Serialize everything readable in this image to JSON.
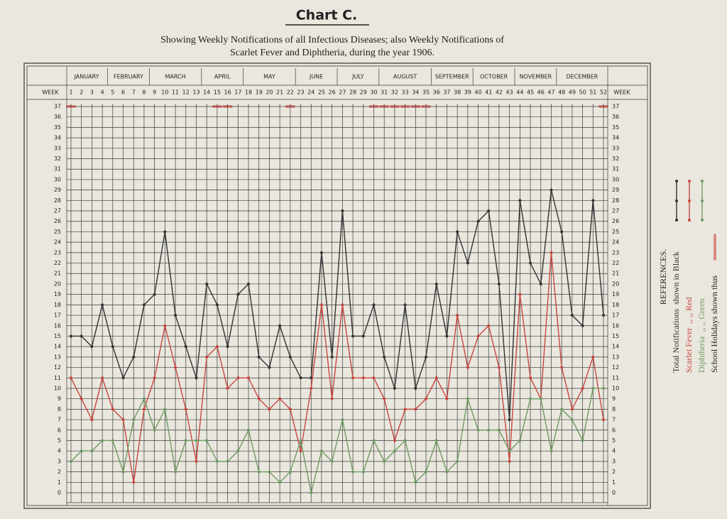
{
  "chart_data": {
    "type": "line",
    "title": "Chart C.",
    "subtitle_lines": [
      "Showing Weekly Notifications of all Infectious Diseases; also Weekly Notifications of",
      "Scarlet Fever and Diphtheria, during the year 1906."
    ],
    "x_label": "WEEK",
    "x": [
      1,
      2,
      3,
      4,
      5,
      6,
      7,
      8,
      9,
      10,
      11,
      12,
      13,
      14,
      15,
      16,
      17,
      18,
      19,
      20,
      21,
      22,
      23,
      24,
      25,
      26,
      27,
      28,
      29,
      30,
      31,
      32,
      33,
      34,
      35,
      36,
      37,
      38,
      39,
      40,
      41,
      42,
      43,
      44,
      45,
      46,
      47,
      48,
      49,
      50,
      51,
      52
    ],
    "xlim": [
      1,
      52
    ],
    "months": [
      {
        "label": "JANUARY",
        "start_week": 1
      },
      {
        "label": "FEBRUARY",
        "start_week": 5
      },
      {
        "label": "MARCH",
        "start_week": 9
      },
      {
        "label": "APRIL",
        "start_week": 14
      },
      {
        "label": "MAY",
        "start_week": 18
      },
      {
        "label": "JUNE",
        "start_week": 23
      },
      {
        "label": "JULY",
        "start_week": 27
      },
      {
        "label": "AUGUST",
        "start_week": 31
      },
      {
        "label": "SEPTEMBER",
        "start_week": 36
      },
      {
        "label": "OCTOBER",
        "start_week": 40
      },
      {
        "label": "NOVEMBER",
        "start_week": 44
      },
      {
        "label": "DECEMBER",
        "start_week": 48
      }
    ],
    "ylim": [
      0,
      37
    ],
    "yticks": [
      0,
      1,
      2,
      3,
      4,
      5,
      6,
      7,
      8,
      9,
      10,
      11,
      12,
      13,
      14,
      15,
      16,
      17,
      18,
      19,
      20,
      21,
      22,
      23,
      24,
      25,
      26,
      27,
      28,
      29,
      30,
      31,
      32,
      33,
      34,
      35,
      36,
      37
    ],
    "grid": true,
    "series": [
      {
        "name": "Total Notifications",
        "legend_note": "shown in Black",
        "color": "#333333",
        "values": [
          15,
          15,
          14,
          18,
          14,
          11,
          13,
          18,
          19,
          25,
          17,
          14,
          11,
          20,
          18,
          14,
          19,
          20,
          13,
          12,
          16,
          13,
          11,
          11,
          23,
          13,
          27,
          15,
          15,
          18,
          13,
          10,
          18,
          10,
          13,
          20,
          15,
          25,
          22,
          26,
          27,
          20,
          7,
          28,
          22,
          20,
          29,
          25,
          17,
          16,
          28,
          17
        ]
      },
      {
        "name": "Scarlet Fever",
        "legend_note": ",,   ,,   Red",
        "color": "#c8463f",
        "values": [
          11,
          9,
          7,
          11,
          8,
          7,
          1,
          8,
          11,
          16,
          12,
          8,
          3,
          13,
          14,
          10,
          11,
          11,
          9,
          8,
          9,
          8,
          4,
          10,
          18,
          9,
          18,
          11,
          11,
          11,
          9,
          5,
          8,
          8,
          9,
          11,
          9,
          17,
          12,
          15,
          16,
          12,
          3,
          19,
          11,
          9,
          23,
          12,
          8,
          10,
          13,
          7
        ]
      },
      {
        "name": "Diphtheria",
        "legend_note": ",,   ,,   Green",
        "color": "#6f9a62",
        "values": [
          3,
          4,
          4,
          5,
          5,
          2,
          7,
          9,
          6,
          8,
          2,
          5,
          5,
          5,
          3,
          3,
          4,
          6,
          2,
          2,
          1,
          2,
          5,
          0,
          4,
          3,
          7,
          2,
          2,
          5,
          3,
          4,
          5,
          1,
          2,
          5,
          2,
          3,
          9,
          6,
          6,
          6,
          4,
          5,
          9,
          9,
          4,
          8,
          7,
          5,
          10,
          10
        ]
      }
    ],
    "legend_title": "REFERENCES.",
    "holiday_label": "School Holidays shown thus",
    "holiday_color": "#c8463f",
    "school_holidays": [
      1,
      15,
      16,
      22,
      30,
      31,
      32,
      33,
      34,
      35,
      52
    ]
  }
}
